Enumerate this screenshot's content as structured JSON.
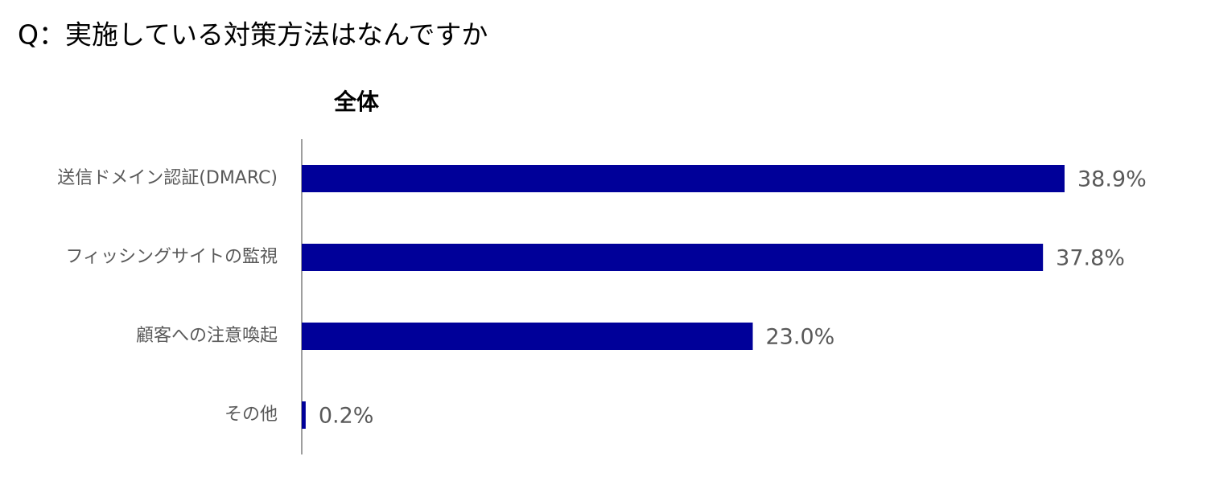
{
  "chart_data": {
    "type": "bar",
    "orientation": "horizontal",
    "title": "Q：実施している対策方法はなんですか",
    "subtitle": "全体",
    "categories": [
      "送信ドメイン認証(DMARC)",
      "フィッシングサイトの監視",
      "顧客への注意喚起",
      "その他"
    ],
    "values": [
      38.9,
      37.8,
      23.0,
      0.2
    ],
    "value_labels": [
      "38.9%",
      "37.8%",
      "23.0%",
      "0.2%"
    ],
    "color": "#000099"
  }
}
